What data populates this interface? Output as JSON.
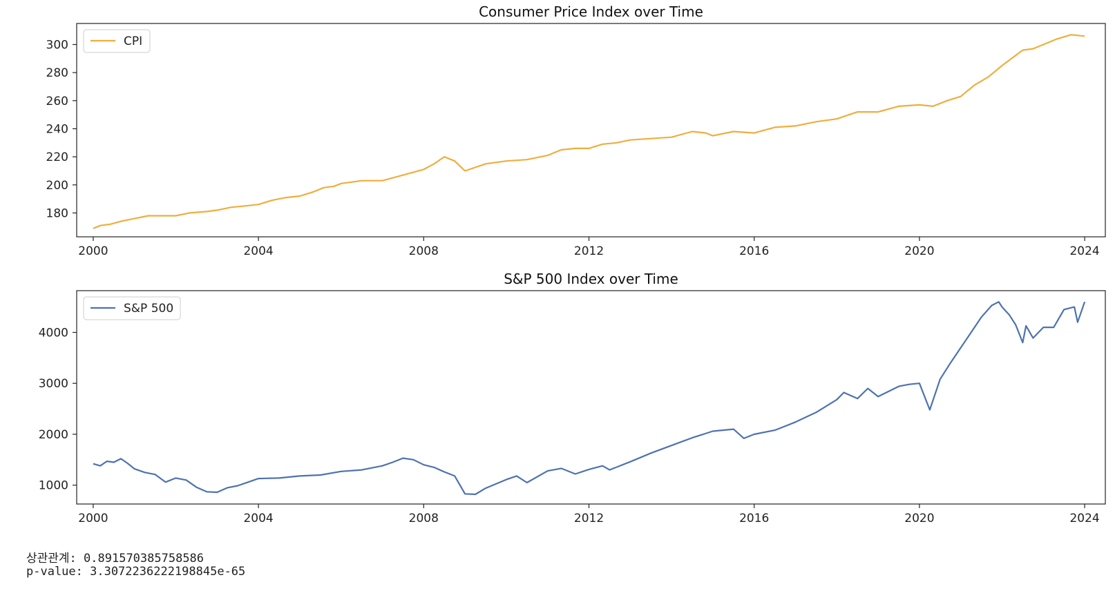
{
  "chart_data": [
    {
      "type": "line",
      "title": "Consumer Price Index over Time",
      "xlabel": "",
      "ylabel": "",
      "xlim": [
        1999.6,
        2024.5
      ],
      "ylim": [
        163,
        315
      ],
      "xticks": [
        2000,
        2004,
        2008,
        2012,
        2016,
        2020,
        2024
      ],
      "yticks": [
        180,
        200,
        220,
        240,
        260,
        280,
        300
      ],
      "legend_position": "top-left",
      "grid": false,
      "series": [
        {
          "name": "CPI",
          "color": "#f0ad3c",
          "x": [
            2000.0,
            2000.17,
            2000.42,
            2000.67,
            2001.0,
            2001.33,
            2001.58,
            2002.0,
            2002.33,
            2002.75,
            2003.0,
            2003.33,
            2003.67,
            2004.0,
            2004.33,
            2004.67,
            2005.0,
            2005.33,
            2005.58,
            2005.83,
            2006.0,
            2006.5,
            2007.0,
            2007.5,
            2008.0,
            2008.25,
            2008.5,
            2008.75,
            2009.0,
            2009.5,
            2010.0,
            2010.5,
            2011.0,
            2011.33,
            2011.67,
            2012.0,
            2012.33,
            2012.67,
            2013.0,
            2013.5,
            2014.0,
            2014.5,
            2014.83,
            2015.0,
            2015.5,
            2016.0,
            2016.5,
            2017.0,
            2017.5,
            2018.0,
            2018.5,
            2019.0,
            2019.5,
            2020.0,
            2020.33,
            2020.67,
            2021.0,
            2021.33,
            2021.67,
            2022.0,
            2022.5,
            2022.75,
            2023.0,
            2023.33,
            2023.67,
            2024.0
          ],
          "y": [
            169,
            171,
            172,
            174,
            176,
            178,
            178,
            178,
            180,
            181,
            182,
            184,
            185,
            186,
            189,
            191,
            192,
            195,
            198,
            199,
            201,
            203,
            203,
            207,
            211,
            215,
            220,
            217,
            210,
            215,
            217,
            218,
            221,
            225,
            226,
            226,
            229,
            230,
            232,
            233,
            234,
            238,
            237,
            235,
            238,
            237,
            241,
            242,
            245,
            247,
            252,
            252,
            256,
            257,
            256,
            260,
            263,
            271,
            277,
            285,
            296,
            297,
            300,
            304,
            307,
            306
          ]
        }
      ]
    },
    {
      "type": "line",
      "title": "S&P 500 Index over Time",
      "xlabel": "",
      "ylabel": "",
      "xlim": [
        1999.6,
        2024.5
      ],
      "ylim": [
        630,
        4820
      ],
      "xticks": [
        2000,
        2004,
        2008,
        2012,
        2016,
        2020,
        2024
      ],
      "yticks": [
        1000,
        2000,
        3000,
        4000
      ],
      "legend_position": "top-left",
      "grid": false,
      "series": [
        {
          "name": "S&P 500",
          "color": "#4c72b0",
          "x": [
            2000.0,
            2000.17,
            2000.33,
            2000.5,
            2000.67,
            2000.83,
            2001.0,
            2001.25,
            2001.5,
            2001.75,
            2002.0,
            2002.25,
            2002.5,
            2002.75,
            2003.0,
            2003.25,
            2003.5,
            2003.75,
            2004.0,
            2004.5,
            2005.0,
            2005.5,
            2006.0,
            2006.5,
            2007.0,
            2007.25,
            2007.5,
            2007.75,
            2008.0,
            2008.25,
            2008.5,
            2008.75,
            2009.0,
            2009.25,
            2009.5,
            2010.0,
            2010.25,
            2010.5,
            2011.0,
            2011.33,
            2011.67,
            2012.0,
            2012.33,
            2012.5,
            2013.0,
            2013.5,
            2014.0,
            2014.5,
            2015.0,
            2015.5,
            2015.75,
            2016.0,
            2016.5,
            2017.0,
            2017.5,
            2018.0,
            2018.17,
            2018.5,
            2018.75,
            2019.0,
            2019.5,
            2019.75,
            2020.0,
            2020.25,
            2020.5,
            2020.75,
            2021.0,
            2021.25,
            2021.5,
            2021.75,
            2021.92,
            2022.0,
            2022.17,
            2022.33,
            2022.5,
            2022.58,
            2022.75,
            2023.0,
            2023.25,
            2023.5,
            2023.75,
            2023.83,
            2024.0
          ],
          "y": [
            1420,
            1380,
            1470,
            1450,
            1520,
            1430,
            1320,
            1250,
            1210,
            1060,
            1140,
            1100,
            960,
            870,
            860,
            950,
            990,
            1060,
            1130,
            1140,
            1180,
            1200,
            1270,
            1300,
            1380,
            1450,
            1530,
            1500,
            1400,
            1350,
            1260,
            1180,
            830,
            820,
            940,
            1110,
            1180,
            1050,
            1280,
            1330,
            1220,
            1310,
            1380,
            1300,
            1460,
            1630,
            1780,
            1930,
            2060,
            2100,
            1920,
            2000,
            2080,
            2240,
            2430,
            2680,
            2820,
            2700,
            2900,
            2740,
            2940,
            2980,
            3000,
            2480,
            3080,
            3400,
            3700,
            4000,
            4300,
            4530,
            4600,
            4500,
            4350,
            4150,
            3800,
            4130,
            3890,
            4100,
            4100,
            4450,
            4500,
            4200,
            4600
          ]
        }
      ]
    }
  ],
  "stats": {
    "correlation_line": "상관관계: 0.891570385758586",
    "pvalue_line": "p-value: 3.3072236222198845e-65"
  }
}
